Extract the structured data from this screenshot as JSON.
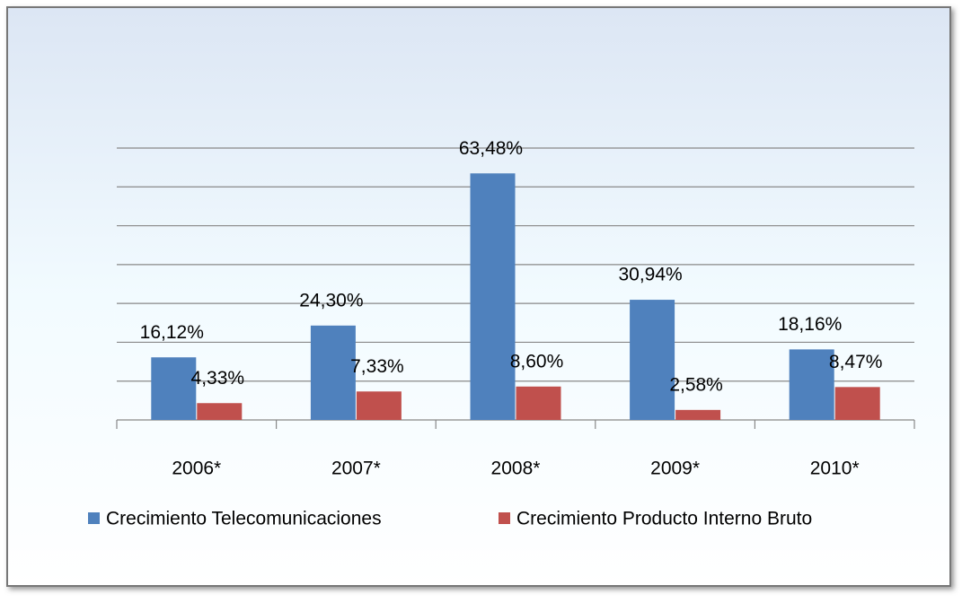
{
  "chart_data": {
    "type": "bar",
    "categories": [
      "2006*",
      "2007*",
      "2008*",
      "2009*",
      "2010*"
    ],
    "series": [
      {
        "name": "Crecimiento Telecomunicaciones",
        "color": "#4f81bd",
        "values": [
          16.12,
          24.3,
          63.48,
          30.94,
          18.16
        ],
        "value_labels": [
          "16,12%",
          "24,30%",
          "63,48%",
          "30,94%",
          "18,16%"
        ]
      },
      {
        "name": "Crecimiento Producto Interno Bruto",
        "color": "#c0504d",
        "values": [
          4.33,
          7.33,
          8.6,
          2.58,
          8.47
        ],
        "value_labels": [
          "4,33%",
          "7,33%",
          "8,60%",
          "2,58%",
          "8,47%"
        ]
      }
    ],
    "ylim": [
      0,
      70
    ],
    "yticks": [
      0,
      10,
      20,
      30,
      40,
      50,
      60,
      70
    ],
    "grid": true,
    "legend": "bottom"
  }
}
